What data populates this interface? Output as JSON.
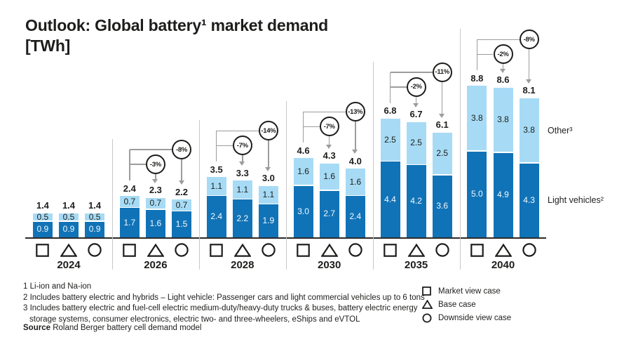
{
  "slide": {
    "title_line1": "Outlook: Global battery¹ market demand",
    "title_line2": "[TWh]"
  },
  "colors": {
    "dark_blue": "#1173b7",
    "light_blue": "#a7dbf5",
    "text_dark": "#1d1d1b",
    "connector_gray": "#9c9c9c",
    "separator_gray": "#c9c9c9",
    "axis_black": "#2b2b2b"
  },
  "chart_data": {
    "type": "bar",
    "stacked": true,
    "unit": "TWh",
    "ylabel": "",
    "xlabel": "",
    "series_order": [
      "light_vehicles",
      "other"
    ],
    "right_labels": {
      "other": "Other³",
      "light_vehicles": "Light vehicles²"
    },
    "cases": [
      {
        "shape": "square",
        "label": "Market view case"
      },
      {
        "shape": "triangle",
        "label": "Base case"
      },
      {
        "shape": "circle",
        "label": "Downside view case"
      }
    ],
    "groups": [
      {
        "year": "2024",
        "bars": [
          {
            "light_vehicles": 0.9,
            "other": 0.5,
            "total": "1.4",
            "delta": null
          },
          {
            "light_vehicles": 0.9,
            "other": 0.5,
            "total": "1.4",
            "delta": null
          },
          {
            "light_vehicles": 0.9,
            "other": 0.5,
            "total": "1.4",
            "delta": null
          }
        ]
      },
      {
        "year": "2026",
        "bars": [
          {
            "light_vehicles": 1.7,
            "other": 0.7,
            "total": "2.4",
            "delta": null
          },
          {
            "light_vehicles": 1.6,
            "other": 0.7,
            "total": "2.3",
            "delta": "-3%"
          },
          {
            "light_vehicles": 1.5,
            "other": 0.7,
            "total": "2.2",
            "delta": "-8%"
          }
        ]
      },
      {
        "year": "2028",
        "bars": [
          {
            "light_vehicles": 2.4,
            "other": 1.1,
            "total": "3.5",
            "delta": null
          },
          {
            "light_vehicles": 2.2,
            "other": 1.1,
            "total": "3.3",
            "delta": "-7%"
          },
          {
            "light_vehicles": 1.9,
            "other": 1.1,
            "total": "3.0",
            "delta": "-14%"
          }
        ]
      },
      {
        "year": "2030",
        "bars": [
          {
            "light_vehicles": 3.0,
            "other": 1.6,
            "total": "4.6",
            "delta": null
          },
          {
            "light_vehicles": 2.7,
            "other": 1.6,
            "total": "4.3",
            "delta": "-7%"
          },
          {
            "light_vehicles": 2.4,
            "other": 1.6,
            "total": "4.0",
            "delta": "-13%"
          }
        ]
      },
      {
        "year": "2035",
        "bars": [
          {
            "light_vehicles": 4.4,
            "other": 2.5,
            "total": "6.8",
            "delta": null
          },
          {
            "light_vehicles": 4.2,
            "other": 2.5,
            "total": "6.7",
            "delta": "-2%"
          },
          {
            "light_vehicles": 3.6,
            "other": 2.5,
            "total": "6.1",
            "delta": "-11%"
          }
        ]
      },
      {
        "year": "2040",
        "bars": [
          {
            "light_vehicles": 5.0,
            "other": 3.8,
            "total": "8.8",
            "delta": null
          },
          {
            "light_vehicles": 4.9,
            "other": 3.8,
            "total": "8.6",
            "delta": "-2%"
          },
          {
            "light_vehicles": 4.3,
            "other": 3.8,
            "total": "8.1",
            "delta": "-8%"
          }
        ]
      }
    ]
  },
  "legend": {
    "items": [
      {
        "shape": "square",
        "label": "Market view case"
      },
      {
        "shape": "triangle",
        "label": "Base case"
      },
      {
        "shape": "circle",
        "label": "Downside view case"
      }
    ]
  },
  "footnotes": {
    "lines": [
      "1 Li-ion and Na-ion",
      "2 Includes battery electric and hybrids – Light vehicle: Passenger cars and light commercial vehicles up to 6 tons",
      "3 Includes battery electric and fuel-cell electric medium-duty/heavy-duty trucks & buses, battery electric energy",
      "storage systems, consumer electronics, electric two- and three-wheelers, eShips and eVTOL"
    ]
  },
  "source": {
    "label": "Source",
    "text": "Roland Berger battery cell demand model"
  }
}
